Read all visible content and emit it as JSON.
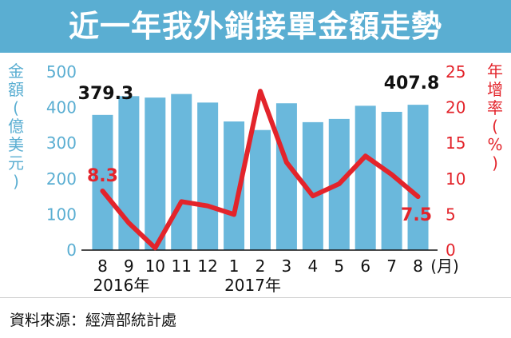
{
  "header": {
    "title": "近一年我外銷接單金額走勢"
  },
  "footer": {
    "source": "資料來源：經濟部統計處"
  },
  "chart_data": {
    "type": "bar",
    "title": "近一年我外銷接單金額走勢",
    "categories": [
      "8",
      "9",
      "10",
      "11",
      "12",
      "1",
      "2",
      "3",
      "4",
      "5",
      "6",
      "7",
      "8"
    ],
    "x_unit": "(月)",
    "year_labels": [
      {
        "text": "2016年",
        "at_index": 0
      },
      {
        "text": "2017年",
        "at_index": 5
      }
    ],
    "y_left": {
      "label_chars": [
        "金",
        "額",
        "(",
        "億",
        "美",
        "元",
        ")"
      ],
      "ticks": [
        0,
        100,
        200,
        300,
        400,
        500
      ],
      "range": [
        0,
        500
      ]
    },
    "y_right": {
      "label_chars": [
        "年",
        "增",
        "率",
        "(",
        "%",
        ")"
      ],
      "ticks": [
        0,
        5,
        10,
        15,
        20,
        25
      ],
      "range": [
        0,
        25
      ]
    },
    "series": [
      {
        "name": "金額",
        "type": "bar",
        "color": "#6ab8dc",
        "axis": "left",
        "values": [
          379.3,
          432,
          428,
          438,
          414,
          361,
          337,
          412,
          359,
          368,
          405,
          388,
          407.8
        ]
      },
      {
        "name": "年增率",
        "type": "line",
        "color": "#e3242b",
        "axis": "right",
        "values": [
          8.3,
          3.8,
          0.3,
          6.8,
          6.2,
          5.0,
          22.3,
          12.3,
          7.6,
          9.3,
          13.2,
          10.6,
          7.5
        ]
      }
    ],
    "annotations": [
      {
        "series": "金額",
        "index": 0,
        "text": "379.3"
      },
      {
        "series": "金額",
        "index": 12,
        "text": "407.8"
      },
      {
        "series": "年增率",
        "index": 0,
        "text": "8.3"
      },
      {
        "series": "年增率",
        "index": 12,
        "text": "7.5"
      }
    ],
    "grid": false
  }
}
